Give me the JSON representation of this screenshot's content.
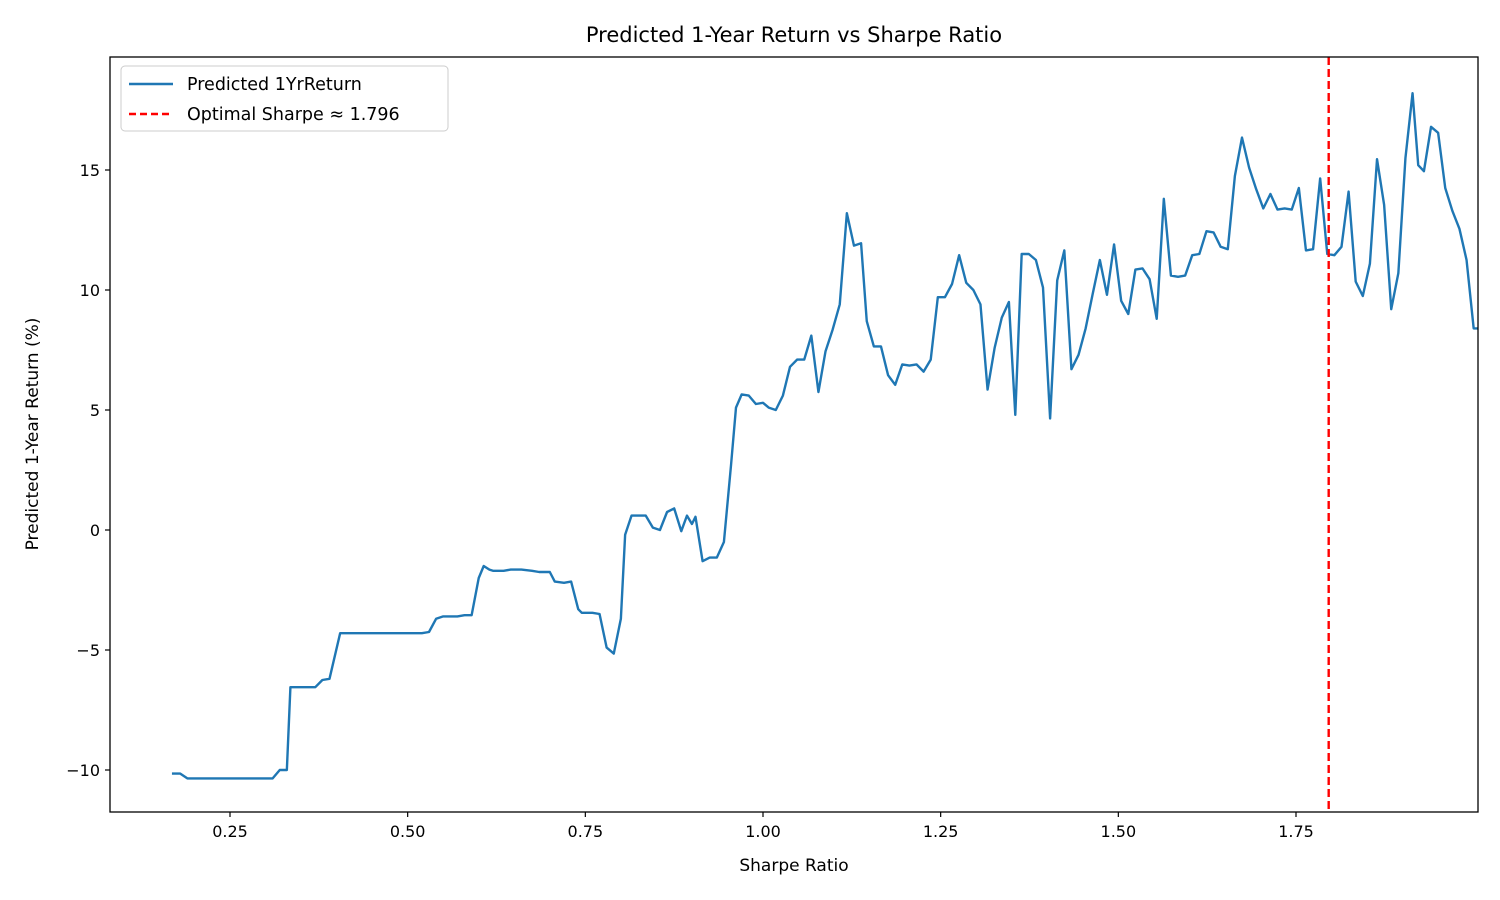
{
  "chart_data": {
    "type": "line",
    "title": "Predicted 1-Year Return vs Sharpe Ratio",
    "xlabel": "Sharpe Ratio",
    "ylabel": "Predicted 1-Year Return (%)",
    "xlim": [
      0.1,
      2.02
    ],
    "ylim": [
      -11.7,
      19.6
    ],
    "x_ticks": [
      0.25,
      0.5,
      0.75,
      1.0,
      1.25,
      1.5,
      1.75
    ],
    "x_tick_labels": [
      "0.25",
      "0.50",
      "0.75",
      "1.00",
      "1.25",
      "1.50",
      "1.75"
    ],
    "y_ticks": [
      -10,
      -5,
      0,
      5,
      10,
      15
    ],
    "y_tick_labels": [
      "−10",
      "−5",
      "0",
      "5",
      "10",
      "15"
    ],
    "grid": false,
    "legend_position": "top-left",
    "series": [
      {
        "name": "Predicted 1YrReturn",
        "color": "#1f77b4",
        "style": "solid",
        "points": [
          [
            0.17,
            -10.15
          ],
          [
            0.18,
            -10.15
          ],
          [
            0.19,
            -10.35
          ],
          [
            0.22,
            -10.35
          ],
          [
            0.25,
            -10.35
          ],
          [
            0.28,
            -10.35
          ],
          [
            0.31,
            -10.35
          ],
          [
            0.32,
            -10.0
          ],
          [
            0.33,
            -10.0
          ],
          [
            0.335,
            -6.55
          ],
          [
            0.35,
            -6.55
          ],
          [
            0.37,
            -6.55
          ],
          [
            0.38,
            -6.25
          ],
          [
            0.39,
            -6.2
          ],
          [
            0.405,
            -4.3
          ],
          [
            0.43,
            -4.3
          ],
          [
            0.46,
            -4.3
          ],
          [
            0.49,
            -4.3
          ],
          [
            0.52,
            -4.3
          ],
          [
            0.53,
            -4.25
          ],
          [
            0.54,
            -3.7
          ],
          [
            0.55,
            -3.6
          ],
          [
            0.57,
            -3.6
          ],
          [
            0.58,
            -3.55
          ],
          [
            0.59,
            -3.55
          ],
          [
            0.6,
            -2.0
          ],
          [
            0.607,
            -1.5
          ],
          [
            0.615,
            -1.65
          ],
          [
            0.62,
            -1.7
          ],
          [
            0.635,
            -1.7
          ],
          [
            0.645,
            -1.65
          ],
          [
            0.66,
            -1.65
          ],
          [
            0.675,
            -1.7
          ],
          [
            0.685,
            -1.75
          ],
          [
            0.7,
            -1.75
          ],
          [
            0.707,
            -2.15
          ],
          [
            0.72,
            -2.2
          ],
          [
            0.73,
            -2.15
          ],
          [
            0.74,
            -3.3
          ],
          [
            0.745,
            -3.45
          ],
          [
            0.76,
            -3.45
          ],
          [
            0.77,
            -3.5
          ],
          [
            0.78,
            -4.9
          ],
          [
            0.79,
            -5.15
          ],
          [
            0.8,
            -3.7
          ],
          [
            0.806,
            -0.2
          ],
          [
            0.815,
            0.6
          ],
          [
            0.835,
            0.6
          ],
          [
            0.845,
            0.1
          ],
          [
            0.855,
            0.0
          ],
          [
            0.865,
            0.75
          ],
          [
            0.875,
            0.9
          ],
          [
            0.885,
            -0.05
          ],
          [
            0.893,
            0.6
          ],
          [
            0.9,
            0.25
          ],
          [
            0.905,
            0.55
          ],
          [
            0.915,
            -1.3
          ],
          [
            0.925,
            -1.15
          ],
          [
            0.935,
            -1.15
          ],
          [
            0.945,
            -0.5
          ],
          [
            0.955,
            2.7
          ],
          [
            0.962,
            5.1
          ],
          [
            0.97,
            5.65
          ],
          [
            0.98,
            5.6
          ],
          [
            0.99,
            5.25
          ],
          [
            1.0,
            5.3
          ],
          [
            1.008,
            5.1
          ],
          [
            1.018,
            5.0
          ],
          [
            1.028,
            5.6
          ],
          [
            1.038,
            6.8
          ],
          [
            1.048,
            7.1
          ],
          [
            1.058,
            7.1
          ],
          [
            1.068,
            8.1
          ],
          [
            1.078,
            5.75
          ],
          [
            1.088,
            7.45
          ],
          [
            1.098,
            8.35
          ],
          [
            1.108,
            9.4
          ],
          [
            1.118,
            13.2
          ],
          [
            1.128,
            11.85
          ],
          [
            1.138,
            11.95
          ],
          [
            1.146,
            8.7
          ],
          [
            1.156,
            7.65
          ],
          [
            1.166,
            7.65
          ],
          [
            1.176,
            6.45
          ],
          [
            1.186,
            6.05
          ],
          [
            1.196,
            6.9
          ],
          [
            1.206,
            6.85
          ],
          [
            1.216,
            6.9
          ],
          [
            1.226,
            6.6
          ],
          [
            1.236,
            7.1
          ],
          [
            1.246,
            9.7
          ],
          [
            1.256,
            9.7
          ],
          [
            1.266,
            10.25
          ],
          [
            1.276,
            11.45
          ],
          [
            1.286,
            10.3
          ],
          [
            1.296,
            10.0
          ],
          [
            1.306,
            9.4
          ],
          [
            1.316,
            5.85
          ],
          [
            1.326,
            7.6
          ],
          [
            1.336,
            8.85
          ],
          [
            1.346,
            9.5
          ],
          [
            1.355,
            4.8
          ],
          [
            1.364,
            11.5
          ],
          [
            1.374,
            11.5
          ],
          [
            1.384,
            11.25
          ],
          [
            1.394,
            10.1
          ],
          [
            1.404,
            4.65
          ],
          [
            1.414,
            10.4
          ],
          [
            1.424,
            11.65
          ],
          [
            1.434,
            6.7
          ],
          [
            1.444,
            7.3
          ],
          [
            1.454,
            8.4
          ],
          [
            1.464,
            9.85
          ],
          [
            1.474,
            11.25
          ],
          [
            1.484,
            9.8
          ],
          [
            1.494,
            11.9
          ],
          [
            1.504,
            9.55
          ],
          [
            1.514,
            9.0
          ],
          [
            1.524,
            10.85
          ],
          [
            1.534,
            10.9
          ],
          [
            1.544,
            10.45
          ],
          [
            1.554,
            8.8
          ],
          [
            1.564,
            13.8
          ],
          [
            1.574,
            10.6
          ],
          [
            1.584,
            10.55
          ],
          [
            1.594,
            10.6
          ],
          [
            1.604,
            11.45
          ],
          [
            1.614,
            11.5
          ],
          [
            1.624,
            12.45
          ],
          [
            1.634,
            12.4
          ],
          [
            1.644,
            11.8
          ],
          [
            1.654,
            11.7
          ],
          [
            1.664,
            14.75
          ],
          [
            1.674,
            16.35
          ],
          [
            1.684,
            15.1
          ],
          [
            1.694,
            14.2
          ],
          [
            1.704,
            13.4
          ],
          [
            1.714,
            14.0
          ],
          [
            1.724,
            13.35
          ],
          [
            1.734,
            13.4
          ],
          [
            1.744,
            13.35
          ],
          [
            1.754,
            14.25
          ],
          [
            1.764,
            11.65
          ],
          [
            1.774,
            11.7
          ],
          [
            1.784,
            14.65
          ],
          [
            1.794,
            11.5
          ],
          [
            1.804,
            11.45
          ],
          [
            1.814,
            11.8
          ],
          [
            1.824,
            14.1
          ],
          [
            1.834,
            10.35
          ],
          [
            1.844,
            9.75
          ],
          [
            1.854,
            11.1
          ],
          [
            1.864,
            15.45
          ],
          [
            1.874,
            13.55
          ],
          [
            1.884,
            9.2
          ],
          [
            1.894,
            10.7
          ],
          [
            1.904,
            15.5
          ],
          [
            1.914,
            18.2
          ],
          [
            1.922,
            15.2
          ],
          [
            1.93,
            14.95
          ],
          [
            1.94,
            16.8
          ],
          [
            1.95,
            16.55
          ],
          [
            1.96,
            14.25
          ],
          [
            1.97,
            13.3
          ],
          [
            1.98,
            12.55
          ],
          [
            1.99,
            11.25
          ],
          [
            2.0,
            8.4
          ],
          [
            2.01,
            8.4
          ],
          [
            2.02,
            8.4
          ]
        ]
      },
      {
        "name": "Optimal Sharpe ≈ 1.796",
        "color": "#ff0000",
        "style": "dashed",
        "vertical_line_x": 1.796
      }
    ]
  }
}
